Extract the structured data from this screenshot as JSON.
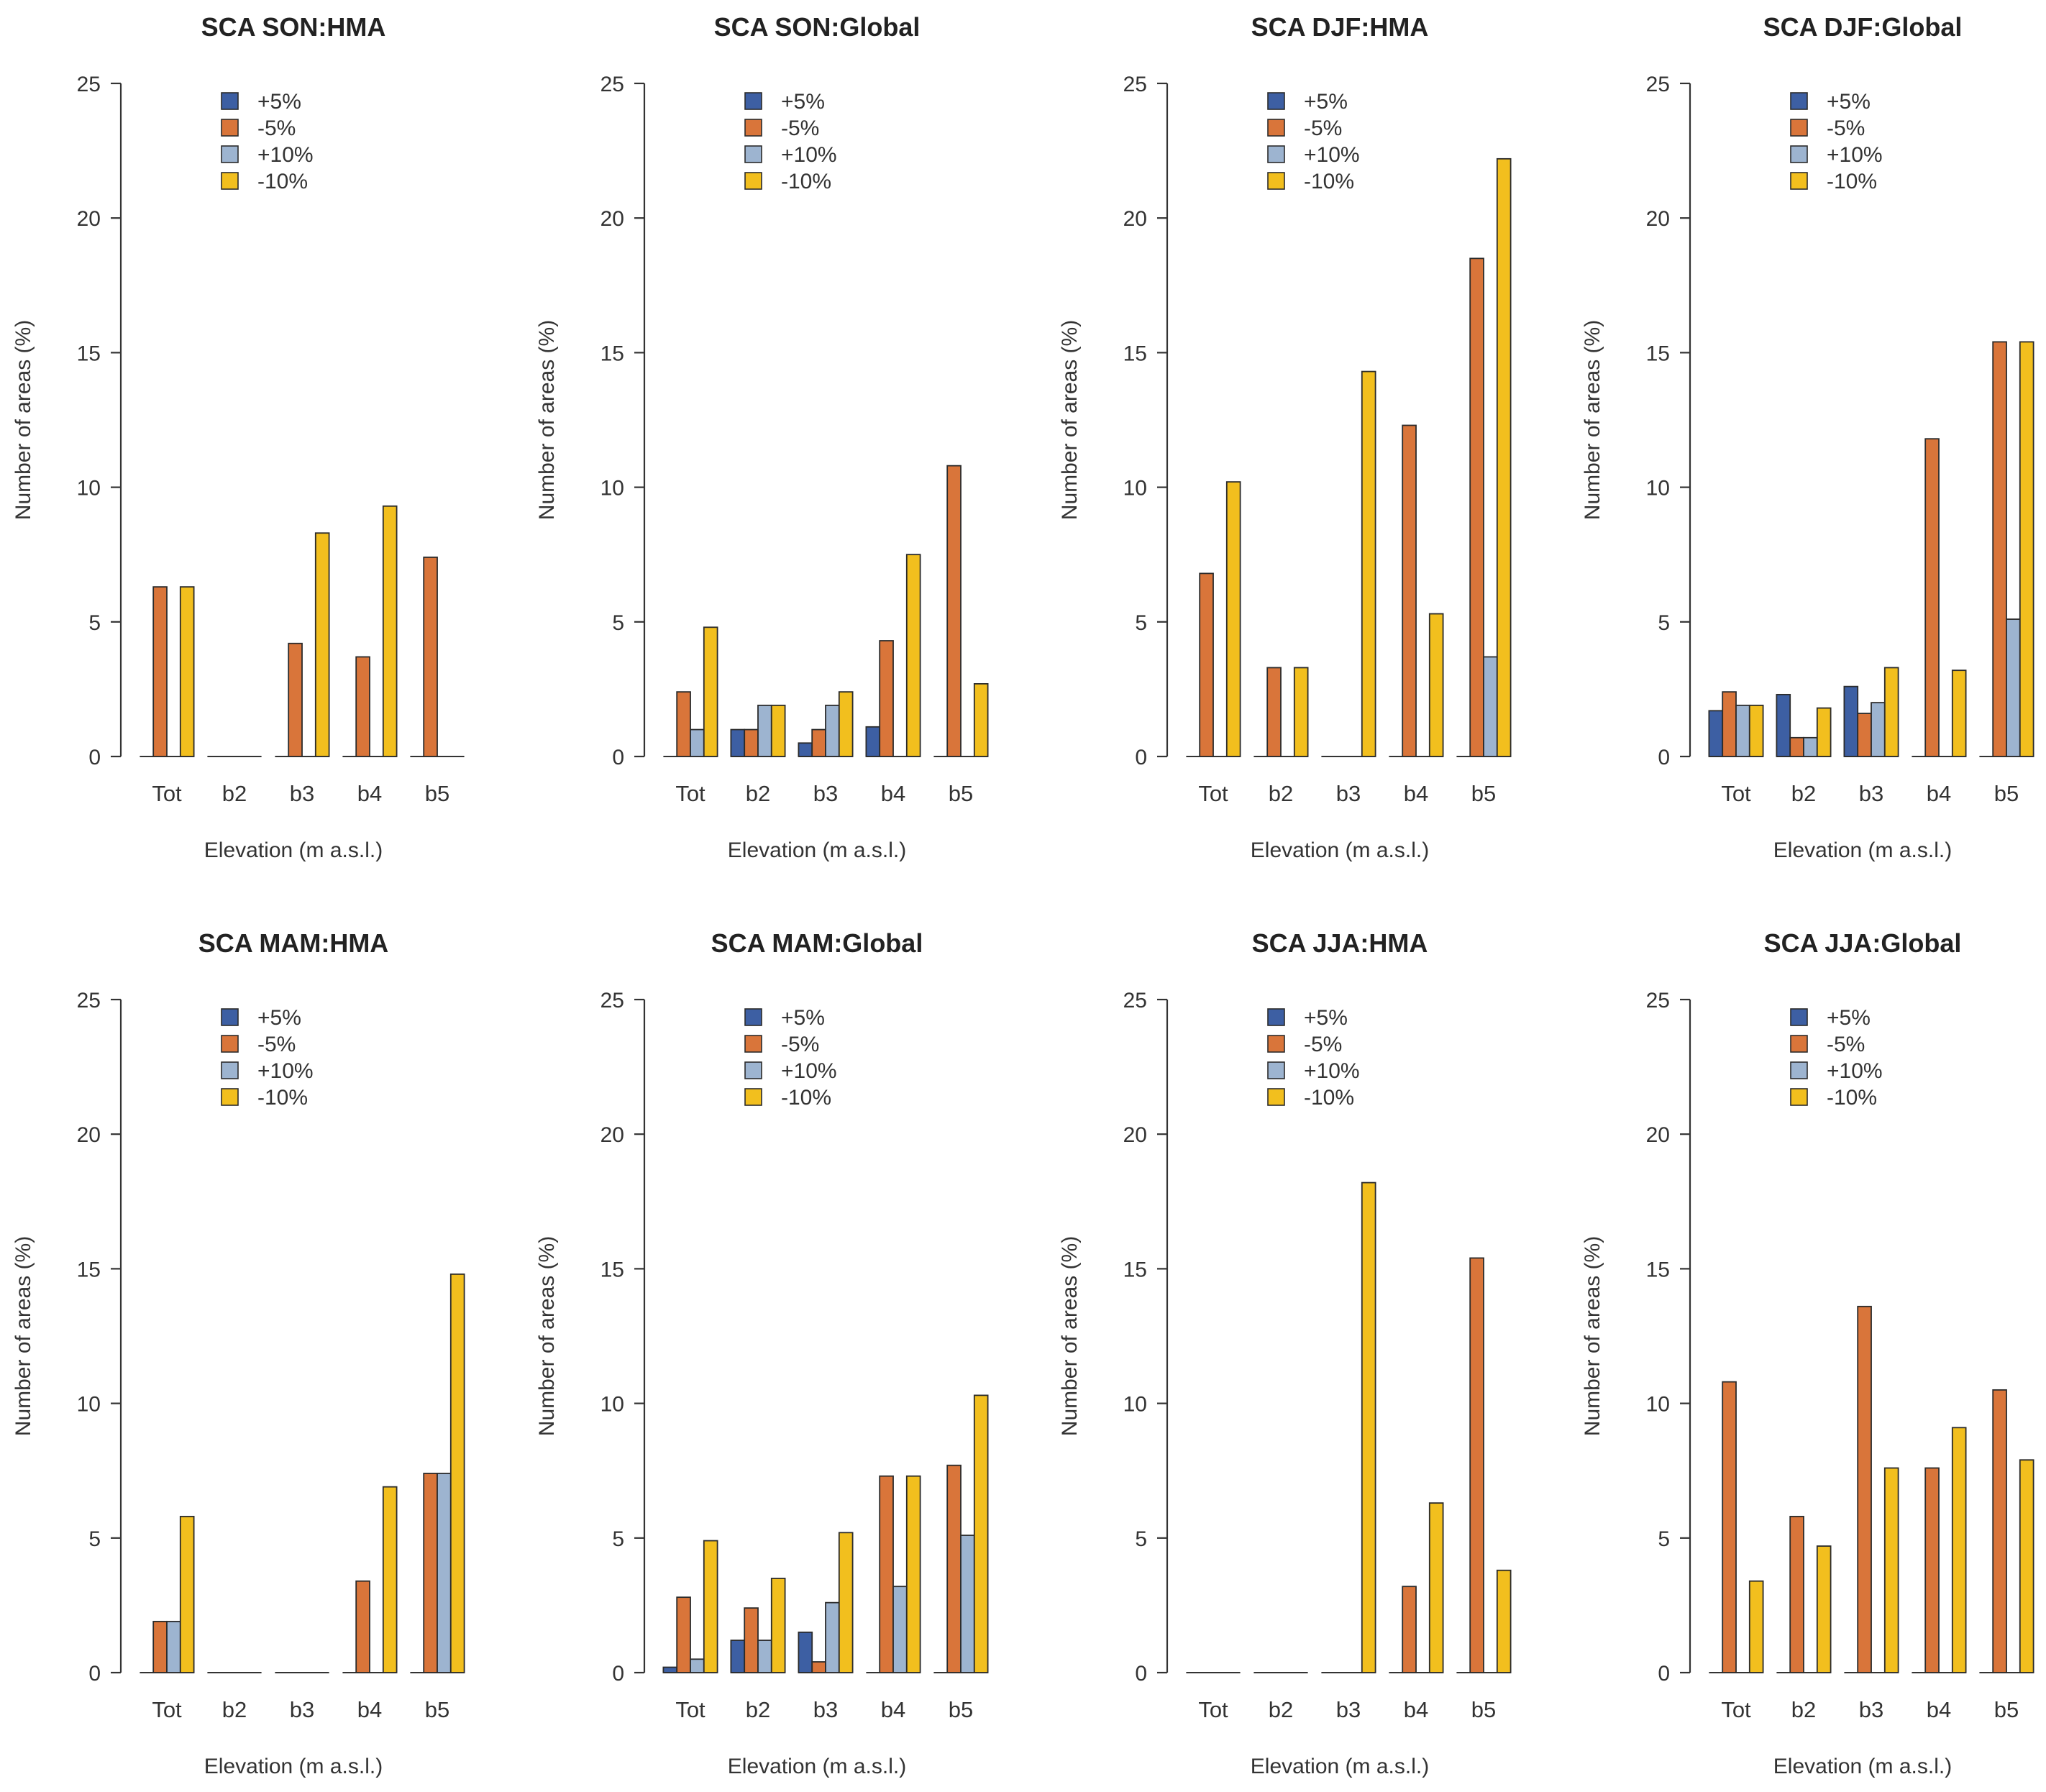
{
  "figure": {
    "legend_labels": [
      "+5%",
      "-5%",
      "+10%",
      "-10%"
    ],
    "series_colors": [
      "#3D5FA3",
      "#D9753A",
      "#9DB4D0",
      "#F2BF1E"
    ]
  },
  "chart_data": [
    {
      "type": "bar",
      "title": "SCA SON:HMA",
      "xlabel": "Elevation (m a.s.l.)",
      "ylabel": "Number of areas (%)",
      "ylim": [
        0,
        25
      ],
      "yticks": [
        0,
        5,
        10,
        15,
        20,
        25
      ],
      "legend": "top-left",
      "categories": [
        "Tot",
        "b2",
        "b3",
        "b4",
        "b5"
      ],
      "series": [
        {
          "name": "+5%",
          "values": [
            0,
            0,
            0,
            0,
            0
          ]
        },
        {
          "name": "-5%",
          "values": [
            6.3,
            0,
            4.2,
            3.7,
            7.4
          ]
        },
        {
          "name": "+10%",
          "values": [
            0,
            0,
            0,
            0,
            0
          ]
        },
        {
          "name": "-10%",
          "values": [
            6.3,
            0,
            8.3,
            9.3,
            0
          ]
        }
      ]
    },
    {
      "type": "bar",
      "title": "SCA SON:Global",
      "xlabel": "Elevation (m a.s.l.)",
      "ylabel": "Number of areas (%)",
      "ylim": [
        0,
        25
      ],
      "yticks": [
        0,
        5,
        10,
        15,
        20,
        25
      ],
      "legend": "top-left",
      "categories": [
        "Tot",
        "b2",
        "b3",
        "b4",
        "b5"
      ],
      "series": [
        {
          "name": "+5%",
          "values": [
            0,
            1.0,
            0.5,
            1.1,
            0
          ]
        },
        {
          "name": "-5%",
          "values": [
            2.4,
            1.0,
            1.0,
            4.3,
            10.8
          ]
        },
        {
          "name": "+10%",
          "values": [
            1.0,
            1.9,
            1.9,
            0,
            0
          ]
        },
        {
          "name": "-10%",
          "values": [
            4.8,
            1.9,
            2.4,
            7.5,
            2.7
          ]
        }
      ]
    },
    {
      "type": "bar",
      "title": "SCA DJF:HMA",
      "xlabel": "Elevation (m a.s.l.)",
      "ylabel": "Number of areas (%)",
      "ylim": [
        0,
        25
      ],
      "yticks": [
        0,
        5,
        10,
        15,
        20,
        25
      ],
      "legend": "top-left",
      "categories": [
        "Tot",
        "b2",
        "b3",
        "b4",
        "b5"
      ],
      "series": [
        {
          "name": "+5%",
          "values": [
            0,
            0,
            0,
            0,
            0
          ]
        },
        {
          "name": "-5%",
          "values": [
            6.8,
            3.3,
            0,
            12.3,
            18.5
          ]
        },
        {
          "name": "+10%",
          "values": [
            0,
            0,
            0,
            0,
            3.7
          ]
        },
        {
          "name": "-10%",
          "values": [
            10.2,
            3.3,
            14.3,
            5.3,
            22.2
          ]
        }
      ]
    },
    {
      "type": "bar",
      "title": "SCA DJF:Global",
      "xlabel": "Elevation (m a.s.l.)",
      "ylabel": "Number of areas (%)",
      "ylim": [
        0,
        25
      ],
      "yticks": [
        0,
        5,
        10,
        15,
        20,
        25
      ],
      "legend": "top-left",
      "categories": [
        "Tot",
        "b2",
        "b3",
        "b4",
        "b5"
      ],
      "series": [
        {
          "name": "+5%",
          "values": [
            1.7,
            2.3,
            2.6,
            0,
            0
          ]
        },
        {
          "name": "-5%",
          "values": [
            2.4,
            0.7,
            1.6,
            11.8,
            15.4
          ]
        },
        {
          "name": "+10%",
          "values": [
            1.9,
            0.7,
            2.0,
            0,
            5.1
          ]
        },
        {
          "name": "-10%",
          "values": [
            1.9,
            1.8,
            3.3,
            3.2,
            15.4
          ]
        }
      ]
    },
    {
      "type": "bar",
      "title": "SCA MAM:HMA",
      "xlabel": "Elevation (m a.s.l.)",
      "ylabel": "Number of areas (%)",
      "ylim": [
        0,
        25
      ],
      "yticks": [
        0,
        5,
        10,
        15,
        20,
        25
      ],
      "legend": "top-left",
      "categories": [
        "Tot",
        "b2",
        "b3",
        "b4",
        "b5"
      ],
      "series": [
        {
          "name": "+5%",
          "values": [
            0,
            0,
            0,
            0,
            0
          ]
        },
        {
          "name": "-5%",
          "values": [
            1.9,
            0,
            0,
            3.4,
            7.4
          ]
        },
        {
          "name": "+10%",
          "values": [
            1.9,
            0,
            0,
            0,
            7.4
          ]
        },
        {
          "name": "-10%",
          "values": [
            5.8,
            0,
            0,
            6.9,
            14.8
          ]
        }
      ]
    },
    {
      "type": "bar",
      "title": "SCA MAM:Global",
      "xlabel": "Elevation (m a.s.l.)",
      "ylabel": "Number of areas (%)",
      "ylim": [
        0,
        25
      ],
      "yticks": [
        0,
        5,
        10,
        15,
        20,
        25
      ],
      "legend": "top-left",
      "categories": [
        "Tot",
        "b2",
        "b3",
        "b4",
        "b5"
      ],
      "series": [
        {
          "name": "+5%",
          "values": [
            0.2,
            1.2,
            1.5,
            0,
            0
          ]
        },
        {
          "name": "-5%",
          "values": [
            2.8,
            2.4,
            0.4,
            7.3,
            7.7
          ]
        },
        {
          "name": "+10%",
          "values": [
            0.5,
            1.2,
            2.6,
            3.2,
            5.1
          ]
        },
        {
          "name": "-10%",
          "values": [
            4.9,
            3.5,
            5.2,
            7.3,
            10.3
          ]
        }
      ]
    },
    {
      "type": "bar",
      "title": "SCA JJA:HMA",
      "xlabel": "Elevation (m a.s.l.)",
      "ylabel": "Number of areas (%)",
      "ylim": [
        0,
        25
      ],
      "yticks": [
        0,
        5,
        10,
        15,
        20,
        25
      ],
      "legend": "top-left",
      "categories": [
        "Tot",
        "b2",
        "b3",
        "b4",
        "b5"
      ],
      "series": [
        {
          "name": "+5%",
          "values": [
            0,
            0,
            0,
            0,
            0
          ]
        },
        {
          "name": "-5%",
          "values": [
            0,
            0,
            0,
            3.2,
            15.4
          ]
        },
        {
          "name": "+10%",
          "values": [
            0,
            0,
            0,
            0,
            0
          ]
        },
        {
          "name": "-10%",
          "values": [
            0,
            0,
            18.2,
            6.3,
            3.8
          ]
        }
      ]
    },
    {
      "type": "bar",
      "title": "SCA JJA:Global",
      "xlabel": "Elevation (m a.s.l.)",
      "ylabel": "Number of areas (%)",
      "ylim": [
        0,
        25
      ],
      "yticks": [
        0,
        5,
        10,
        15,
        20,
        25
      ],
      "legend": "top-left",
      "categories": [
        "Tot",
        "b2",
        "b3",
        "b4",
        "b5"
      ],
      "series": [
        {
          "name": "+5%",
          "values": [
            0,
            0,
            0,
            0,
            0
          ]
        },
        {
          "name": "-5%",
          "values": [
            10.8,
            5.8,
            13.6,
            7.6,
            10.5
          ]
        },
        {
          "name": "+10%",
          "values": [
            0,
            0,
            0,
            0,
            0
          ]
        },
        {
          "name": "-10%",
          "values": [
            3.4,
            4.7,
            7.6,
            9.1,
            7.9
          ]
        }
      ]
    }
  ]
}
